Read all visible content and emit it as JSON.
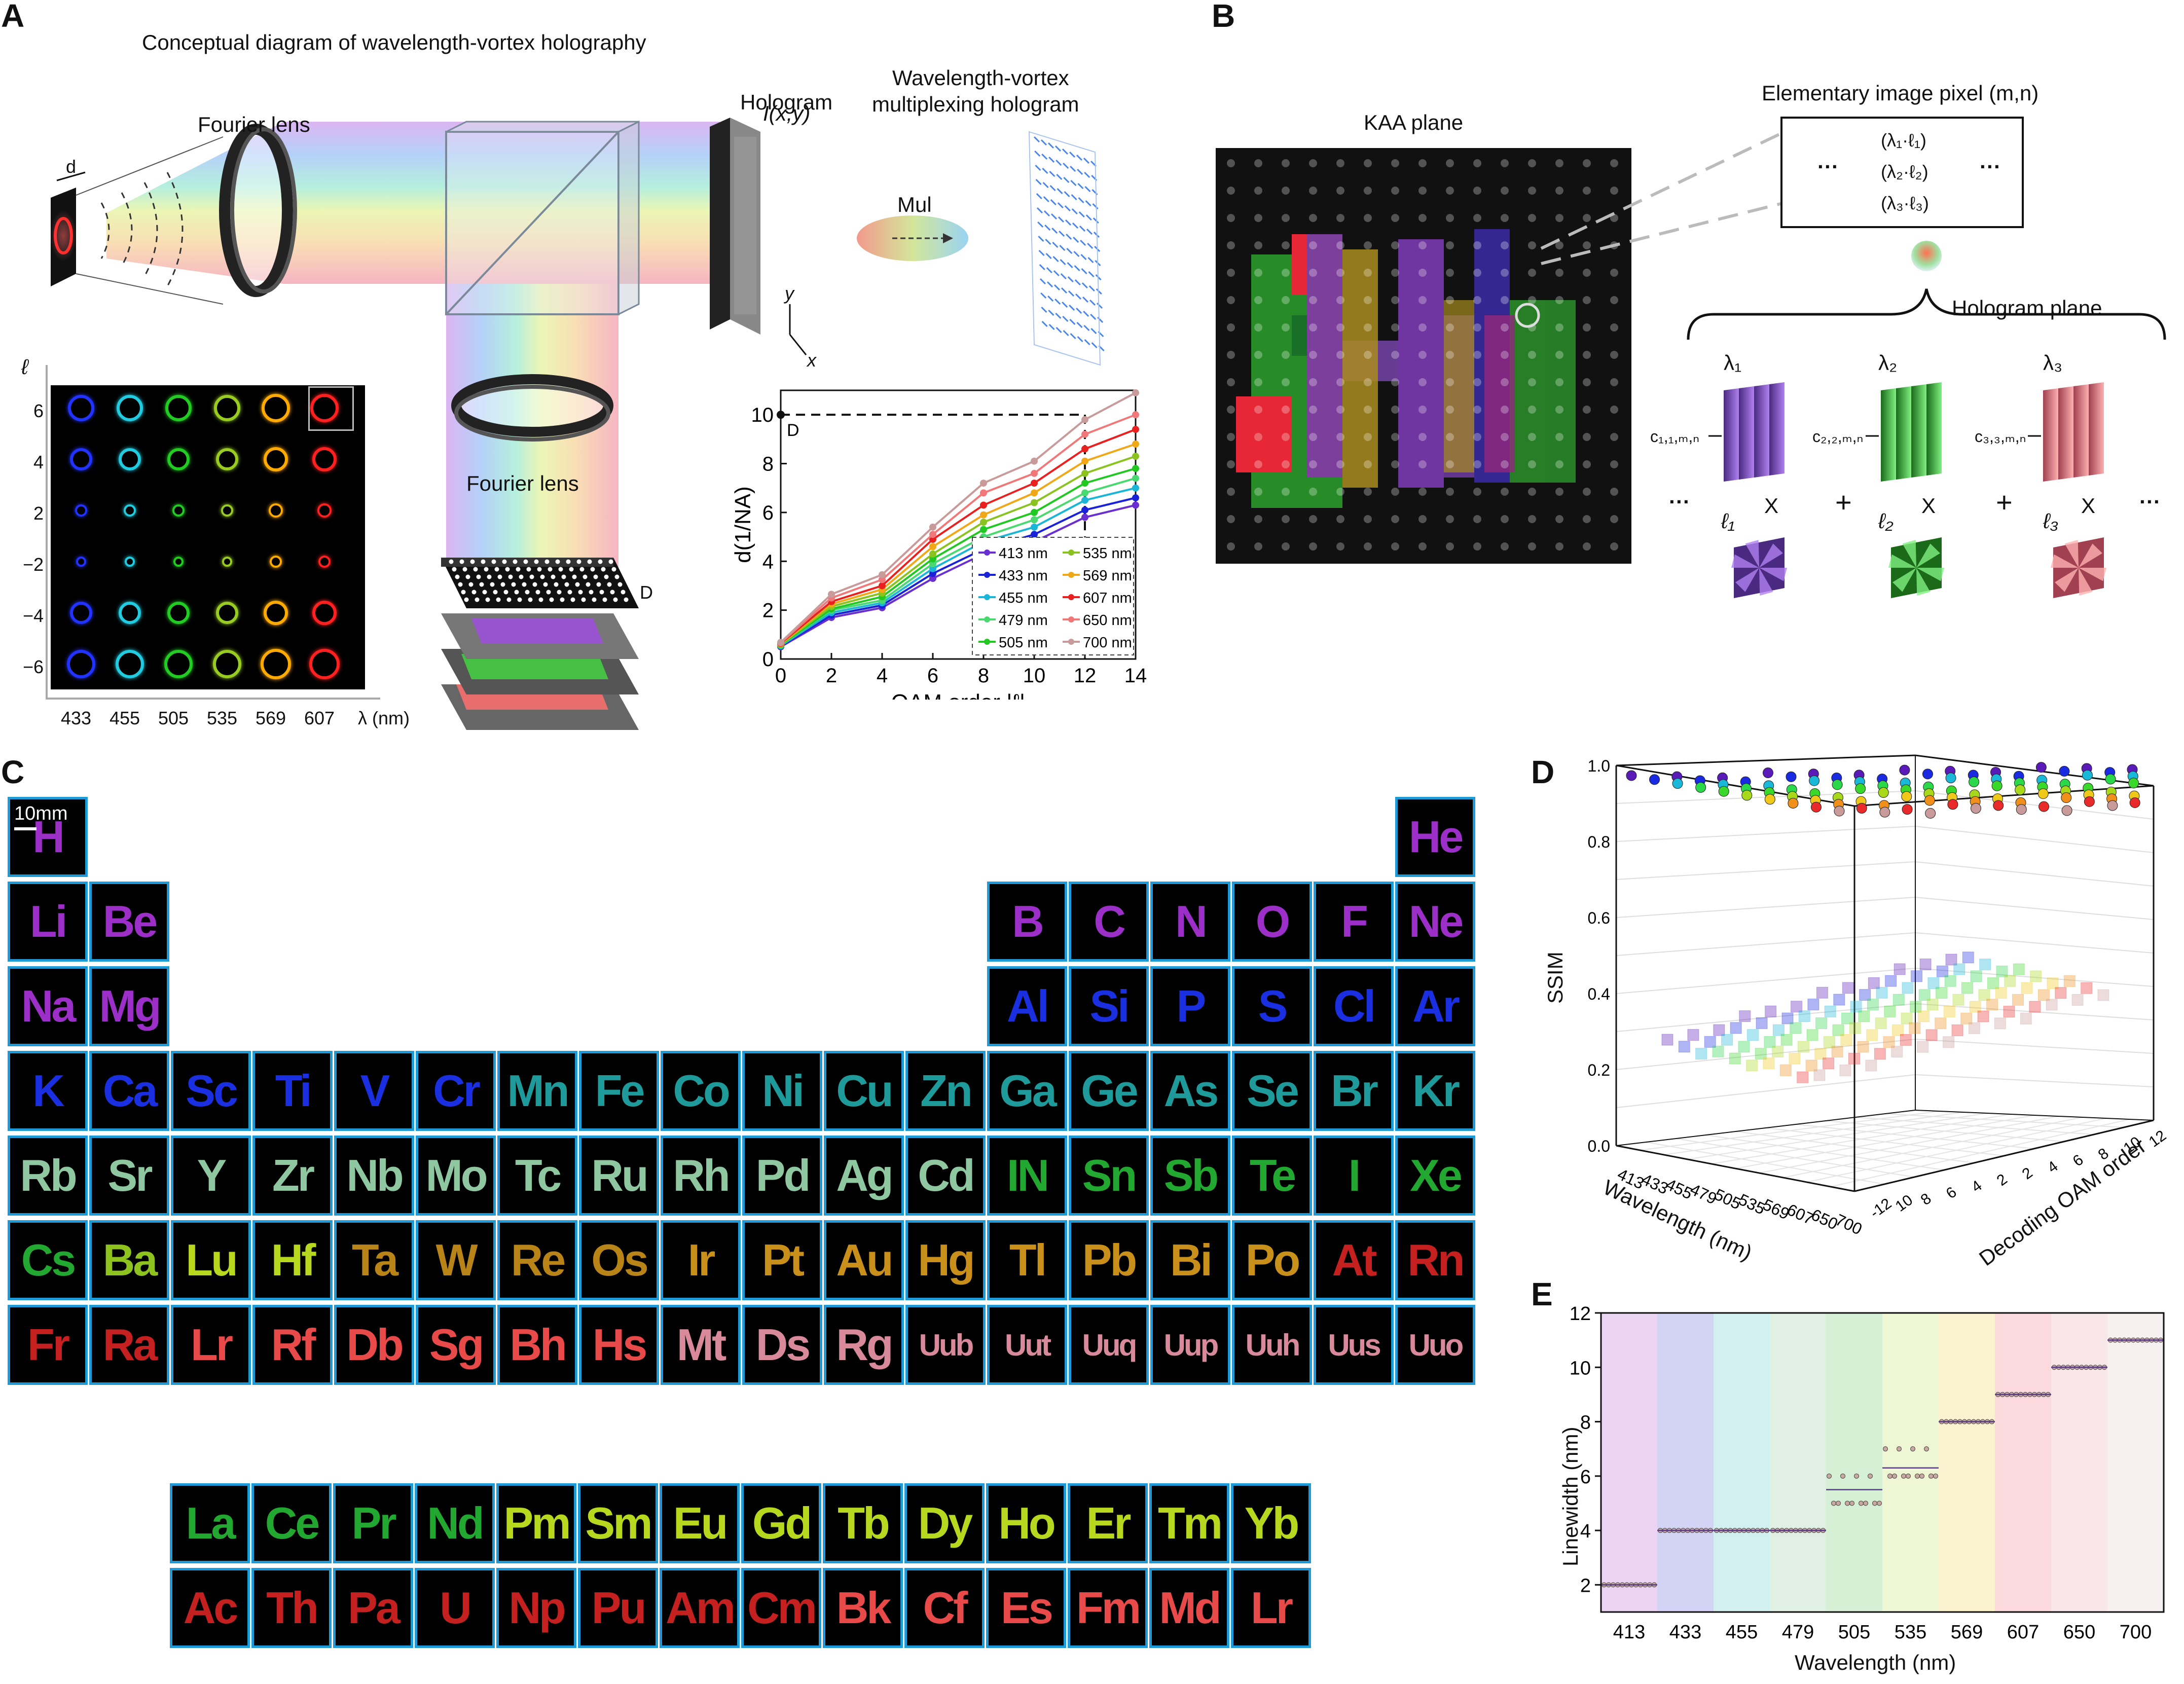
{
  "panels": {
    "A": {
      "label": "A",
      "title": "Conceptual diagram of wavelength-vortex holography",
      "d_label": "d",
      "fourier_lens_1": "Fourier lens",
      "fourier_lens_2": "Fourier lens",
      "hologram": "Hologram",
      "hologram_intensity": "I(x,y)",
      "multiplex_title_1": "Wavelength-vortex",
      "multiplex_title_2": "multiplexing hologram",
      "mul": "Mul",
      "axis_y": "y",
      "axis_x": "x",
      "kaa_D": "D",
      "matrix": {
        "y_axis": "ℓ",
        "rows": [
          "6",
          "4",
          "2",
          "−2",
          "−4",
          "−6"
        ],
        "cols": [
          "433",
          "455",
          "505",
          "535",
          "569",
          "607"
        ],
        "x_unit": "λ (nm)",
        "colors": [
          "#2233ff",
          "#22cce0",
          "#22cc22",
          "#99cc22",
          "#ffaa00",
          "#ff2020"
        ]
      }
    },
    "B": {
      "label": "B",
      "kaa_plane": "KAA plane",
      "elementary_title": "Elementary image pixel (m,n)",
      "pixel_rows": [
        "(λ₁·ℓ₁)",
        "(λ₂·ℓ₂)",
        "(λ₃·ℓ₃)"
      ],
      "dots": "···",
      "hologram_plane": "Hologram  plane",
      "lambdas": [
        "λ₁",
        "λ₂",
        "λ₃"
      ],
      "ells": [
        "ℓ₁",
        "ℓ₂",
        "ℓ₃"
      ],
      "coeffs": [
        "c₁,₁,ₘ,ₙ",
        "c₂,₂,ₘ,ₙ",
        "c₃,₃,ₘ,ₙ"
      ],
      "times": "X",
      "plus": "+"
    },
    "C": {
      "label": "C",
      "scale_bar": "10mm"
    },
    "D": {
      "label": "D",
      "z_label": "SSIM",
      "x_label": "Wavelength (nm)",
      "y_label": "Decoding OAM order",
      "z_ticks": [
        "0.0",
        "0.2",
        "0.4",
        "0.6",
        "0.8",
        "1.0"
      ],
      "x_ticks": [
        "413",
        "433",
        "455",
        "479",
        "505",
        "535",
        "569",
        "607",
        "650",
        "700"
      ],
      "y_ticks": [
        "-12",
        "10",
        "8",
        "6",
        "4",
        "2",
        "2",
        "4",
        "6",
        "8",
        "10",
        "12"
      ]
    },
    "E": {
      "label": "E",
      "ylabel": "Linewidth (nm)",
      "xlabel": "Wavelength (nm)"
    }
  },
  "periodic_table": {
    "main": [
      {
        "s": "H",
        "r": 0,
        "c": 0,
        "col": "#9b2fc8"
      },
      {
        "s": "He",
        "r": 0,
        "c": 17,
        "col": "#9b2fc8"
      },
      {
        "s": "Li",
        "r": 1,
        "c": 0,
        "col": "#9b2fc8"
      },
      {
        "s": "Be",
        "r": 1,
        "c": 1,
        "col": "#9b2fc8"
      },
      {
        "s": "B",
        "r": 1,
        "c": 12,
        "col": "#9b2fc8"
      },
      {
        "s": "C",
        "r": 1,
        "c": 13,
        "col": "#9b2fc8"
      },
      {
        "s": "N",
        "r": 1,
        "c": 14,
        "col": "#9b2fc8"
      },
      {
        "s": "O",
        "r": 1,
        "c": 15,
        "col": "#9b2fc8"
      },
      {
        "s": "F",
        "r": 1,
        "c": 16,
        "col": "#9b2fc8"
      },
      {
        "s": "Ne",
        "r": 1,
        "c": 17,
        "col": "#9b2fc8"
      },
      {
        "s": "Na",
        "r": 2,
        "c": 0,
        "col": "#9b2fc8"
      },
      {
        "s": "Mg",
        "r": 2,
        "c": 1,
        "col": "#9b2fc8"
      },
      {
        "s": "Al",
        "r": 2,
        "c": 12,
        "col": "#1a2fe0"
      },
      {
        "s": "Si",
        "r": 2,
        "c": 13,
        "col": "#1a2fe0"
      },
      {
        "s": "P",
        "r": 2,
        "c": 14,
        "col": "#1a2fe0"
      },
      {
        "s": "S",
        "r": 2,
        "c": 15,
        "col": "#1a2fe0"
      },
      {
        "s": "Cl",
        "r": 2,
        "c": 16,
        "col": "#1a2fe0"
      },
      {
        "s": "Ar",
        "r": 2,
        "c": 17,
        "col": "#1a2fe0"
      },
      {
        "s": "K",
        "r": 3,
        "c": 0,
        "col": "#1a2fe0"
      },
      {
        "s": "Ca",
        "r": 3,
        "c": 1,
        "col": "#1a2fe0"
      },
      {
        "s": "Sc",
        "r": 3,
        "c": 2,
        "col": "#1a2fe0"
      },
      {
        "s": "Ti",
        "r": 3,
        "c": 3,
        "col": "#1a2fe0"
      },
      {
        "s": "V",
        "r": 3,
        "c": 4,
        "col": "#1a2fe0"
      },
      {
        "s": "Cr",
        "r": 3,
        "c": 5,
        "col": "#1a2fe0"
      },
      {
        "s": "Mn",
        "r": 3,
        "c": 6,
        "col": "#1f9a9a"
      },
      {
        "s": "Fe",
        "r": 3,
        "c": 7,
        "col": "#1f9a9a"
      },
      {
        "s": "Co",
        "r": 3,
        "c": 8,
        "col": "#1f9a9a"
      },
      {
        "s": "Ni",
        "r": 3,
        "c": 9,
        "col": "#1f9a9a"
      },
      {
        "s": "Cu",
        "r": 3,
        "c": 10,
        "col": "#1f9a9a"
      },
      {
        "s": "Zn",
        "r": 3,
        "c": 11,
        "col": "#1f9a9a"
      },
      {
        "s": "Ga",
        "r": 3,
        "c": 12,
        "col": "#1f9a9a"
      },
      {
        "s": "Ge",
        "r": 3,
        "c": 13,
        "col": "#1f9a9a"
      },
      {
        "s": "As",
        "r": 3,
        "c": 14,
        "col": "#1f9a9a"
      },
      {
        "s": "Se",
        "r": 3,
        "c": 15,
        "col": "#1f9a9a"
      },
      {
        "s": "Br",
        "r": 3,
        "c": 16,
        "col": "#1f9a9a"
      },
      {
        "s": "Kr",
        "r": 3,
        "c": 17,
        "col": "#1f9a9a"
      },
      {
        "s": "Rb",
        "r": 4,
        "c": 0,
        "col": "#8fc8a0"
      },
      {
        "s": "Sr",
        "r": 4,
        "c": 1,
        "col": "#8fc8a0"
      },
      {
        "s": "Y",
        "r": 4,
        "c": 2,
        "col": "#8fc8a0"
      },
      {
        "s": "Zr",
        "r": 4,
        "c": 3,
        "col": "#8fc8a0"
      },
      {
        "s": "Nb",
        "r": 4,
        "c": 4,
        "col": "#8fc8a0"
      },
      {
        "s": "Mo",
        "r": 4,
        "c": 5,
        "col": "#8fc8a0"
      },
      {
        "s": "Tc",
        "r": 4,
        "c": 6,
        "col": "#8fc8a0"
      },
      {
        "s": "Ru",
        "r": 4,
        "c": 7,
        "col": "#8fc8a0"
      },
      {
        "s": "Rh",
        "r": 4,
        "c": 8,
        "col": "#8fc8a0"
      },
      {
        "s": "Pd",
        "r": 4,
        "c": 9,
        "col": "#8fc8a0"
      },
      {
        "s": "Ag",
        "r": 4,
        "c": 10,
        "col": "#8fc8a0"
      },
      {
        "s": "Cd",
        "r": 4,
        "c": 11,
        "col": "#8fc8a0"
      },
      {
        "s": "IN",
        "r": 4,
        "c": 12,
        "col": "#22a830"
      },
      {
        "s": "Sn",
        "r": 4,
        "c": 13,
        "col": "#22a830"
      },
      {
        "s": "Sb",
        "r": 4,
        "c": 14,
        "col": "#22a830"
      },
      {
        "s": "Te",
        "r": 4,
        "c": 15,
        "col": "#22a830"
      },
      {
        "s": "I",
        "r": 4,
        "c": 16,
        "col": "#22a830"
      },
      {
        "s": "Xe",
        "r": 4,
        "c": 17,
        "col": "#22a830"
      },
      {
        "s": "Cs",
        "r": 5,
        "c": 0,
        "col": "#22a830"
      },
      {
        "s": "Ba",
        "r": 5,
        "c": 1,
        "col": "#8ec21f"
      },
      {
        "s": "Lu",
        "r": 5,
        "c": 2,
        "col": "#b8d81f"
      },
      {
        "s": "Hf",
        "r": 5,
        "c": 3,
        "col": "#b8d81f"
      },
      {
        "s": "Ta",
        "r": 5,
        "c": 4,
        "col": "#b88418"
      },
      {
        "s": "W",
        "r": 5,
        "c": 5,
        "col": "#b88418"
      },
      {
        "s": "Re",
        "r": 5,
        "c": 6,
        "col": "#b88418"
      },
      {
        "s": "Os",
        "r": 5,
        "c": 7,
        "col": "#b88418"
      },
      {
        "s": "Ir",
        "r": 5,
        "c": 8,
        "col": "#c8901a"
      },
      {
        "s": "Pt",
        "r": 5,
        "c": 9,
        "col": "#c8901a"
      },
      {
        "s": "Au",
        "r": 5,
        "c": 10,
        "col": "#c8901a"
      },
      {
        "s": "Hg",
        "r": 5,
        "c": 11,
        "col": "#c8901a"
      },
      {
        "s": "Tl",
        "r": 5,
        "c": 12,
        "col": "#c8901a"
      },
      {
        "s": "Pb",
        "r": 5,
        "c": 13,
        "col": "#c8901a"
      },
      {
        "s": "Bi",
        "r": 5,
        "c": 14,
        "col": "#c8901a"
      },
      {
        "s": "Po",
        "r": 5,
        "c": 15,
        "col": "#c8901a"
      },
      {
        "s": "At",
        "r": 5,
        "c": 16,
        "col": "#c42020"
      },
      {
        "s": "Rn",
        "r": 5,
        "c": 17,
        "col": "#c42020"
      },
      {
        "s": "Fr",
        "r": 6,
        "c": 0,
        "col": "#c42020"
      },
      {
        "s": "Ra",
        "r": 6,
        "c": 1,
        "col": "#c42020"
      },
      {
        "s": "Lr",
        "r": 6,
        "c": 2,
        "col": "#e84a4a"
      },
      {
        "s": "Rf",
        "r": 6,
        "c": 3,
        "col": "#e84a4a"
      },
      {
        "s": "Db",
        "r": 6,
        "c": 4,
        "col": "#e84a4a"
      },
      {
        "s": "Sg",
        "r": 6,
        "c": 5,
        "col": "#e84a4a"
      },
      {
        "s": "Bh",
        "r": 6,
        "c": 6,
        "col": "#e84a4a"
      },
      {
        "s": "Hs",
        "r": 6,
        "c": 7,
        "col": "#e84a4a"
      },
      {
        "s": "Mt",
        "r": 6,
        "c": 8,
        "col": "#d88a9a"
      },
      {
        "s": "Ds",
        "r": 6,
        "c": 9,
        "col": "#d88a9a"
      },
      {
        "s": "Rg",
        "r": 6,
        "c": 10,
        "col": "#d88a9a"
      },
      {
        "s": "Uub",
        "r": 6,
        "c": 11,
        "col": "#d88a9a"
      },
      {
        "s": "Uut",
        "r": 6,
        "c": 12,
        "col": "#d88a9a"
      },
      {
        "s": "Uuq",
        "r": 6,
        "c": 13,
        "col": "#d88a9a"
      },
      {
        "s": "Uup",
        "r": 6,
        "c": 14,
        "col": "#d88a9a"
      },
      {
        "s": "Uuh",
        "r": 6,
        "c": 15,
        "col": "#d88a9a"
      },
      {
        "s": "Uus",
        "r": 6,
        "c": 16,
        "col": "#d88a9a"
      },
      {
        "s": "Uuo",
        "r": 6,
        "c": 17,
        "col": "#d88a9a"
      }
    ],
    "lanthanides": [
      {
        "s": "La",
        "col": "#22a830"
      },
      {
        "s": "Ce",
        "col": "#22a830"
      },
      {
        "s": "Pr",
        "col": "#22a830"
      },
      {
        "s": "Nd",
        "col": "#22a830"
      },
      {
        "s": "Pm",
        "col": "#b8d81f"
      },
      {
        "s": "Sm",
        "col": "#b8d81f"
      },
      {
        "s": "Eu",
        "col": "#b8d81f"
      },
      {
        "s": "Gd",
        "col": "#b8d81f"
      },
      {
        "s": "Tb",
        "col": "#b8d81f"
      },
      {
        "s": "Dy",
        "col": "#b8d81f"
      },
      {
        "s": "Ho",
        "col": "#b8d81f"
      },
      {
        "s": "Er",
        "col": "#b8d81f"
      },
      {
        "s": "Tm",
        "col": "#b8d81f"
      },
      {
        "s": "Yb",
        "col": "#b8d81f"
      }
    ],
    "actinides": [
      {
        "s": "Ac",
        "col": "#c42020"
      },
      {
        "s": "Th",
        "col": "#c42020"
      },
      {
        "s": "Pa",
        "col": "#c42020"
      },
      {
        "s": "U",
        "col": "#c42020"
      },
      {
        "s": "Np",
        "col": "#c42020"
      },
      {
        "s": "Pu",
        "col": "#c42020"
      },
      {
        "s": "Am",
        "col": "#c42020"
      },
      {
        "s": "Cm",
        "col": "#c42020"
      },
      {
        "s": "Bk",
        "col": "#e84a4a"
      },
      {
        "s": "Cf",
        "col": "#e84a4a"
      },
      {
        "s": "Es",
        "col": "#e84a4a"
      },
      {
        "s": "Fm",
        "col": "#e84a4a"
      },
      {
        "s": "Md",
        "col": "#e84a4a"
      },
      {
        "s": "Lr",
        "col": "#e84a4a"
      }
    ]
  },
  "chart_data": [
    {
      "type": "line",
      "panel": "A",
      "xlabel": "OAM order |ℓ|",
      "ylabel": "d(1/NA)",
      "x": [
        0,
        2,
        4,
        6,
        8,
        10,
        12,
        14
      ],
      "xlim": [
        0,
        14
      ],
      "ylim": [
        0,
        11
      ],
      "xticks": [
        "0",
        "2",
        "4",
        "6",
        "8",
        "10",
        "12",
        "14"
      ],
      "yticks": [
        "0",
        "2",
        "4",
        "6",
        "8",
        "10"
      ],
      "annotation": "D",
      "series": [
        {
          "name": "413 nm",
          "color": "#6a2fd0",
          "values": [
            0.5,
            1.7,
            2.1,
            3.3,
            4.3,
            4.8,
            5.8,
            6.3
          ]
        },
        {
          "name": "433 nm",
          "color": "#1a22d8",
          "values": [
            0.52,
            1.8,
            2.2,
            3.5,
            4.5,
            5.1,
            6.1,
            6.6
          ]
        },
        {
          "name": "455 nm",
          "color": "#1bb5d8",
          "values": [
            0.54,
            1.9,
            2.3,
            3.7,
            4.8,
            5.4,
            6.5,
            7.0
          ]
        },
        {
          "name": "479 nm",
          "color": "#4ad870",
          "values": [
            0.56,
            2.0,
            2.4,
            3.9,
            5.0,
            5.7,
            6.8,
            7.4
          ]
        },
        {
          "name": "505 nm",
          "color": "#22c822",
          "values": [
            0.58,
            2.05,
            2.55,
            4.1,
            5.3,
            6.0,
            7.2,
            7.8
          ]
        },
        {
          "name": "535 nm",
          "color": "#8ac21f",
          "values": [
            0.6,
            2.15,
            2.7,
            4.3,
            5.6,
            6.4,
            7.6,
            8.3
          ]
        },
        {
          "name": "569 nm",
          "color": "#f0a818",
          "values": [
            0.62,
            2.25,
            2.85,
            4.6,
            5.9,
            6.8,
            8.1,
            8.8
          ]
        },
        {
          "name": "607 nm",
          "color": "#e82020",
          "values": [
            0.64,
            2.35,
            3.0,
            4.9,
            6.3,
            7.2,
            8.6,
            9.4
          ]
        },
        {
          "name": "650 nm",
          "color": "#f07878",
          "values": [
            0.66,
            2.5,
            3.25,
            5.1,
            6.8,
            7.6,
            9.2,
            10.0
          ]
        },
        {
          "name": "700 nm",
          "color": "#c89a9a",
          "values": [
            0.68,
            2.65,
            3.45,
            5.4,
            7.2,
            8.1,
            9.8,
            10.9
          ]
        }
      ]
    },
    {
      "type": "scatter",
      "panel": "E",
      "xlabel": "Wavelength (nm)",
      "ylabel": "Linewidth (nm)",
      "ylim": [
        1,
        12
      ],
      "yticks": [
        "2",
        "4",
        "6",
        "8",
        "10",
        "12"
      ],
      "bands": [
        {
          "label": "413",
          "color": "#e6c8f0",
          "linewidth": 2
        },
        {
          "label": "433",
          "color": "#c8c8f4",
          "linewidth": 4
        },
        {
          "label": "455",
          "color": "#c8ecec",
          "linewidth": 4
        },
        {
          "label": "479",
          "color": "#d8ecdc",
          "linewidth": 4
        },
        {
          "label": "505",
          "color": "#cceccc",
          "linewidth": 5.5
        },
        {
          "label": "535",
          "color": "#eaf4c8",
          "linewidth": 6.3
        },
        {
          "label": "569",
          "color": "#faf0c4",
          "linewidth": 8
        },
        {
          "label": "607",
          "color": "#fad0d4",
          "linewidth": 9
        },
        {
          "label": "650",
          "color": "#f8e0e4",
          "linewidth": 10
        },
        {
          "label": "700",
          "color": "#f4ecee",
          "linewidth": 11
        }
      ]
    }
  ]
}
